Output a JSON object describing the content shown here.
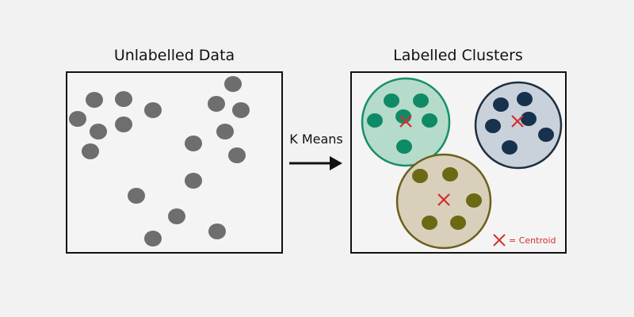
{
  "left_panel": {
    "title": "Unlabelled Data",
    "point_color": "#6e6e6e"
  },
  "arrow": {
    "label": "K Means"
  },
  "right_panel": {
    "title": "Labelled Clusters",
    "clusters": [
      {
        "fill": "#b5dbcb",
        "stroke": "#168f68",
        "point_color": "#0f8a66"
      },
      {
        "fill": "#c9d2db",
        "stroke": "#1e2f3f",
        "point_color": "#17324d"
      },
      {
        "fill": "#d8d0bb",
        "stroke": "#6b5f1c",
        "point_color": "#6b6914"
      }
    ],
    "centroid_color": "#d62c2c",
    "legend": {
      "symbol": "X",
      "label": "= Centroid"
    }
  }
}
